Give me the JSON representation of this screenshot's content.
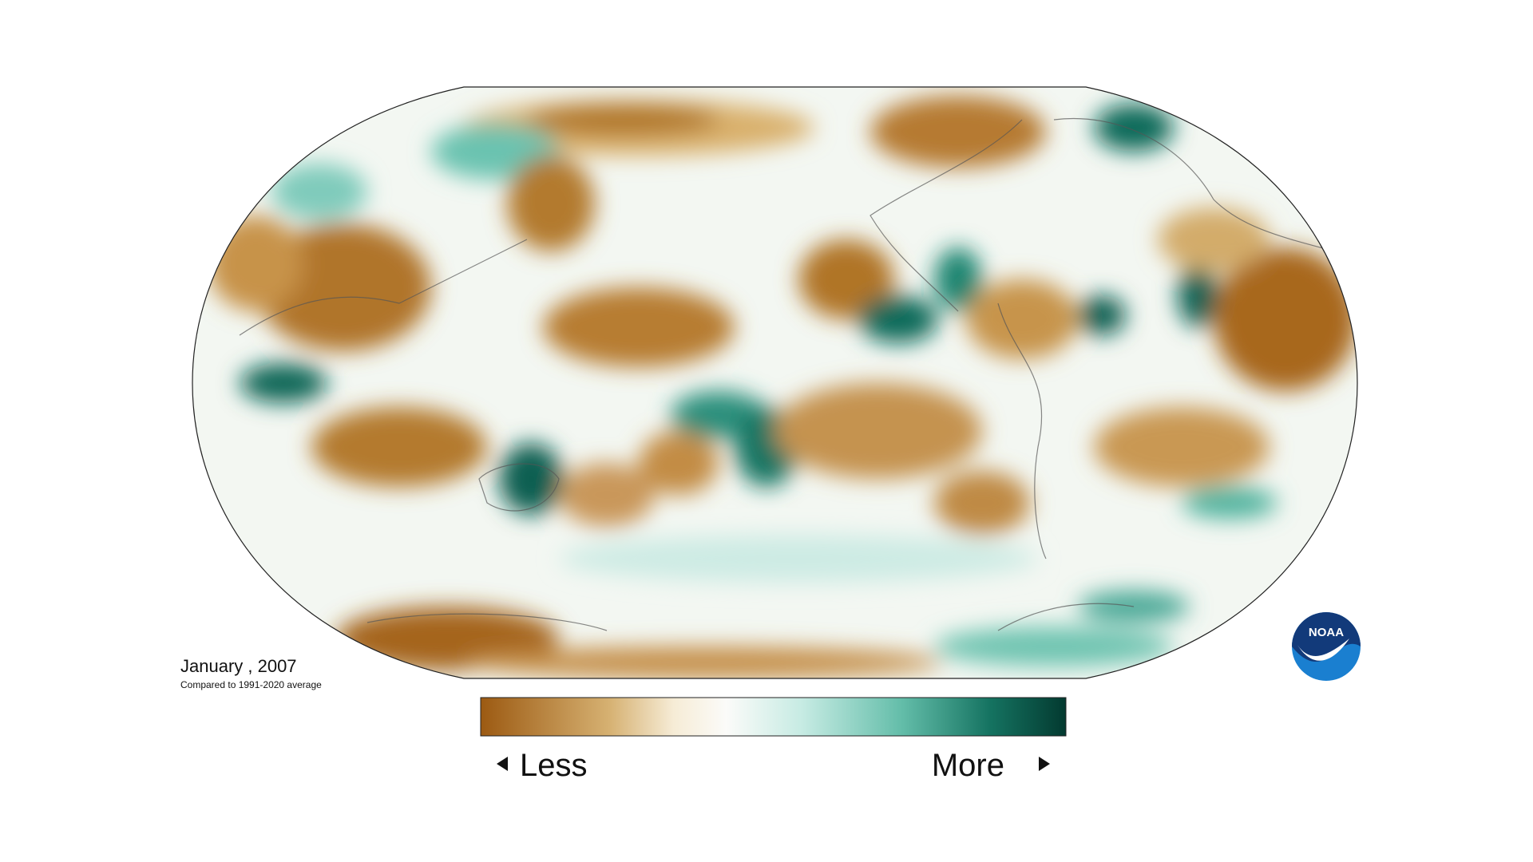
{
  "caption": {
    "date": "January , 2007",
    "note": "Compared to 1991-2020 average"
  },
  "legend": {
    "less": "Less",
    "more": "More"
  },
  "logo": {
    "text": "NOAA"
  }
}
